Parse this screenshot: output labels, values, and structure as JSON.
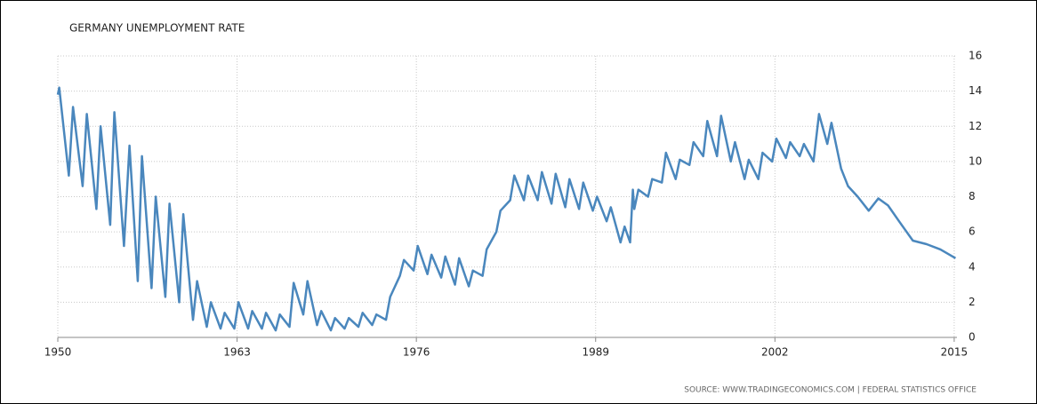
{
  "chart_data": {
    "type": "line",
    "title": "GERMANY UNEMPLOYMENT RATE",
    "source": "SOURCE: WWW.TRADINGECONOMICS.COM | FEDERAL STATISTICS OFFICE",
    "xlim": [
      1950,
      2015.2
    ],
    "xticks": [
      1950,
      1963,
      1976,
      1989,
      2002,
      2015
    ],
    "ylim": [
      0,
      16
    ],
    "yticks": [
      0,
      2,
      4,
      6,
      8,
      10,
      12,
      14,
      16
    ],
    "grid": true,
    "series": [
      {
        "color": "#4a87bd",
        "x": [
          1950.0,
          1950.1,
          1950.8,
          1951.1,
          1951.8,
          1952.1,
          1952.8,
          1953.1,
          1953.8,
          1954.1,
          1954.8,
          1955.2,
          1955.8,
          1956.1,
          1956.8,
          1957.1,
          1957.8,
          1958.1,
          1958.8,
          1959.1,
          1959.8,
          1960.1,
          1960.8,
          1961.1,
          1961.8,
          1962.1,
          1962.8,
          1963.1,
          1963.8,
          1964.1,
          1964.8,
          1965.1,
          1965.8,
          1966.1,
          1966.8,
          1967.1,
          1967.8,
          1968.1,
          1968.8,
          1969.1,
          1969.8,
          1970.1,
          1970.8,
          1971.1,
          1971.8,
          1972.1,
          1972.8,
          1973.1,
          1973.8,
          1974.1,
          1974.8,
          1975.1,
          1975.8,
          1976.1,
          1976.8,
          1977.1,
          1977.8,
          1978.1,
          1978.8,
          1979.1,
          1979.8,
          1980.1,
          1980.8,
          1981.1,
          1981.8,
          1982.1,
          1982.8,
          1983.1,
          1983.8,
          1984.1,
          1984.8,
          1985.1,
          1985.8,
          1986.1,
          1986.8,
          1987.1,
          1987.8,
          1988.1,
          1988.8,
          1989.1,
          1989.8,
          1990.1,
          1990.8,
          1991.1,
          1991.5,
          1991.7,
          1991.8,
          1992.1,
          1992.8,
          1993.1,
          1993.8,
          1994.1,
          1994.8,
          1995.1,
          1995.8,
          1996.1,
          1996.8,
          1997.1,
          1997.8,
          1998.1,
          1998.8,
          1999.1,
          1999.8,
          2000.1,
          2000.8,
          2001.1,
          2001.8,
          2002.1,
          2002.8,
          2003.1,
          2003.8,
          2004.1,
          2004.8,
          2005.2,
          2005.8,
          2006.1,
          2006.8,
          2007.3,
          2008.0,
          2008.8,
          2009.5,
          2010.2,
          2011.0,
          2012.0,
          2013.0,
          2014.0,
          2015.1
        ],
        "values": [
          13.8,
          14.2,
          9.2,
          13.1,
          8.6,
          12.7,
          7.3,
          12.0,
          6.4,
          12.8,
          5.2,
          10.9,
          3.2,
          10.3,
          2.8,
          8.0,
          2.3,
          7.6,
          2.0,
          7.0,
          1.0,
          3.2,
          0.6,
          2.0,
          0.5,
          1.4,
          0.5,
          2.0,
          0.5,
          1.5,
          0.5,
          1.4,
          0.4,
          1.3,
          0.6,
          3.1,
          1.3,
          3.2,
          0.7,
          1.5,
          0.4,
          1.1,
          0.5,
          1.1,
          0.6,
          1.4,
          0.7,
          1.3,
          1.0,
          2.3,
          3.5,
          4.4,
          3.8,
          5.2,
          3.6,
          4.7,
          3.4,
          4.6,
          3.0,
          4.5,
          2.9,
          3.8,
          3.5,
          5.0,
          6.0,
          7.2,
          7.8,
          9.2,
          7.8,
          9.2,
          7.8,
          9.4,
          7.6,
          9.3,
          7.4,
          9.0,
          7.3,
          8.8,
          7.2,
          8.0,
          6.6,
          7.4,
          5.4,
          6.3,
          5.4,
          8.4,
          7.3,
          8.4,
          8.0,
          9.0,
          8.8,
          10.5,
          9.0,
          10.1,
          9.8,
          11.1,
          10.3,
          12.3,
          10.3,
          12.6,
          10.0,
          11.1,
          9.0,
          10.1,
          9.0,
          10.5,
          10.0,
          11.3,
          10.2,
          11.1,
          10.3,
          11.0,
          10.0,
          12.7,
          11.0,
          12.2,
          9.6,
          8.6,
          8.0,
          7.2,
          7.9,
          7.5,
          6.6,
          5.5,
          5.3,
          5.0,
          4.5
        ]
      }
    ]
  }
}
